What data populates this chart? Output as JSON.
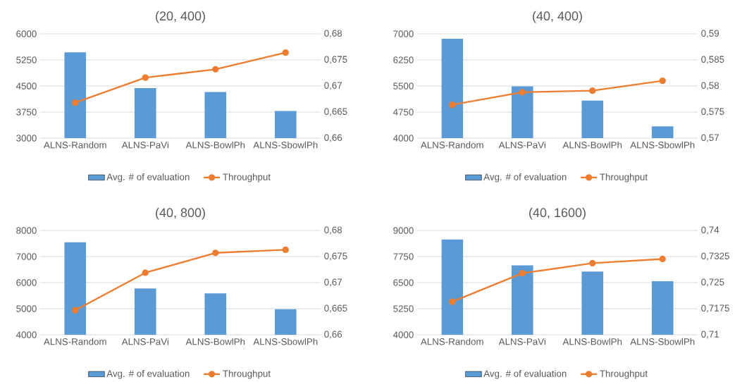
{
  "chart_data": [
    {
      "type": "bar",
      "title": "(20, 400)",
      "categories": [
        "ALNS-Random",
        "ALNS-PaVi",
        "ALNS-BowlPh",
        "ALNS-SbowlPh"
      ],
      "series": [
        {
          "name": "Avg. # of evaluation",
          "type": "bar",
          "color": "#5b9bd5",
          "values": [
            5470,
            4440,
            4330,
            3780
          ]
        },
        {
          "name": "Throughput",
          "type": "line",
          "axis": "y2",
          "marker": "circle",
          "color": "#ed7d31",
          "values": [
            0.6668,
            0.6716,
            0.6732,
            0.6764
          ]
        }
      ],
      "ylim": [
        3000,
        6000
      ],
      "yticks": [
        3000,
        3750,
        4500,
        5250,
        6000
      ],
      "y2lim": [
        0.66,
        0.68
      ],
      "y2ticks": [
        {
          "value": 0.66,
          "label": "0,66"
        },
        {
          "value": 0.665,
          "label": "0,665"
        },
        {
          "value": 0.67,
          "label": "0,67"
        },
        {
          "value": 0.675,
          "label": "0,675"
        },
        {
          "value": 0.68,
          "label": "0,68"
        }
      ],
      "grid": "y",
      "legend": "bottom"
    },
    {
      "type": "bar",
      "title": "(40, 400)",
      "categories": [
        "ALNS-Random",
        "ALNS-PaVi",
        "ALNS-BowlPh",
        "ALNS-SbowlPh"
      ],
      "series": [
        {
          "name": "Avg. # of evaluation",
          "type": "bar",
          "color": "#5b9bd5",
          "values": [
            6860,
            5490,
            5080,
            4340
          ]
        },
        {
          "name": "Throughput",
          "type": "line",
          "axis": "y2",
          "marker": "circle",
          "color": "#ed7d31",
          "values": [
            0.5764,
            0.5788,
            0.5791,
            0.581
          ]
        }
      ],
      "ylim": [
        4000,
        7000
      ],
      "yticks": [
        4000,
        4750,
        5500,
        6250,
        7000
      ],
      "y2lim": [
        0.57,
        0.59
      ],
      "y2ticks": [
        {
          "value": 0.57,
          "label": "0,57"
        },
        {
          "value": 0.575,
          "label": "0,575"
        },
        {
          "value": 0.58,
          "label": "0,58"
        },
        {
          "value": 0.585,
          "label": "0,585"
        },
        {
          "value": 0.59,
          "label": "0,59"
        }
      ],
      "grid": "y",
      "legend": "bottom"
    },
    {
      "type": "bar",
      "title": "(40, 800)",
      "categories": [
        "ALNS-Random",
        "ALNS-PaVi",
        "ALNS-BowlPh",
        "ALNS-SbowlPh"
      ],
      "series": [
        {
          "name": "Avg. # of evaluation",
          "type": "bar",
          "color": "#5b9bd5",
          "values": [
            7550,
            5780,
            5590,
            4980
          ]
        },
        {
          "name": "Throughput",
          "type": "line",
          "axis": "y2",
          "marker": "circle",
          "color": "#ed7d31",
          "values": [
            0.6647,
            0.6719,
            0.6757,
            0.6763
          ]
        }
      ],
      "ylim": [
        4000,
        8000
      ],
      "yticks": [
        4000,
        5000,
        6000,
        7000,
        8000
      ],
      "y2lim": [
        0.66,
        0.68
      ],
      "y2ticks": [
        {
          "value": 0.66,
          "label": "0,66"
        },
        {
          "value": 0.665,
          "label": "0,665"
        },
        {
          "value": 0.67,
          "label": "0,67"
        },
        {
          "value": 0.675,
          "label": "0,675"
        },
        {
          "value": 0.68,
          "label": "0,68"
        }
      ],
      "grid": "y",
      "legend": "bottom"
    },
    {
      "type": "bar",
      "title": "(40, 1600)",
      "categories": [
        "ALNS-Random",
        "ALNS-PaVi",
        "ALNS-BowlPh",
        "ALNS-SbowlPh"
      ],
      "series": [
        {
          "name": "Avg. # of evaluation",
          "type": "bar",
          "color": "#5b9bd5",
          "values": [
            8570,
            7330,
            7030,
            6570
          ]
        },
        {
          "name": "Throughput",
          "type": "line",
          "axis": "y2",
          "marker": "circle",
          "color": "#ed7d31",
          "values": [
            0.7195,
            0.7277,
            0.7306,
            0.7318
          ]
        }
      ],
      "ylim": [
        4000,
        9000
      ],
      "yticks": [
        4000,
        5250,
        6500,
        7750,
        9000
      ],
      "y2lim": [
        0.71,
        0.74
      ],
      "y2ticks": [
        {
          "value": 0.71,
          "label": "0,71"
        },
        {
          "value": 0.7175,
          "label": "0,7175"
        },
        {
          "value": 0.725,
          "label": "0,725"
        },
        {
          "value": 0.7325,
          "label": "0,7325"
        },
        {
          "value": 0.74,
          "label": "0,74"
        }
      ],
      "grid": "y",
      "legend": "bottom"
    }
  ]
}
